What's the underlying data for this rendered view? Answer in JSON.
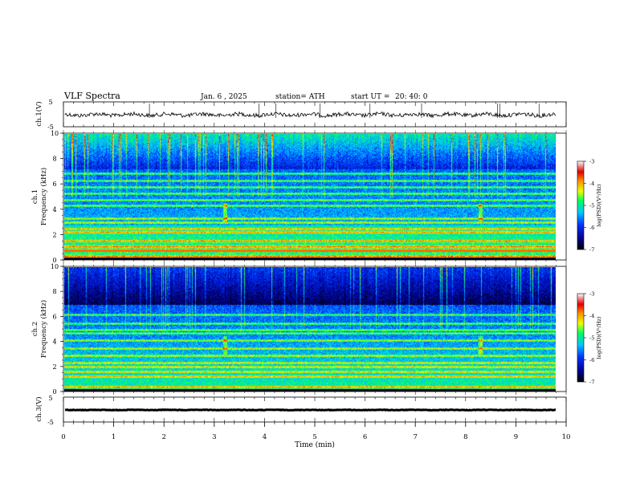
{
  "header": {
    "title": "VLF  Spectra",
    "date": "Jan.  6  , 2025",
    "station": "station= ATH",
    "start_label": "start  UT  =",
    "start_time": "20: 40: 0"
  },
  "chart_data": [
    {
      "type": "line",
      "name": "ch1-waveform",
      "ylabel": "ch.1(V)",
      "ylim": [
        -5,
        5
      ],
      "yticks": [
        "5",
        "-5"
      ],
      "xlim": [
        0,
        10
      ],
      "baseline_v": 0.1
    },
    {
      "type": "heatmap",
      "name": "ch1-spectrogram",
      "ylabel": "ch.1\nFrequency  (kHz)",
      "ylabel_line1": "ch.1",
      "ylabel_line2": "Frequency  (kHz)",
      "ylim": [
        0,
        10
      ],
      "yticks": [
        "0",
        "2",
        "4",
        "6",
        "8",
        "10"
      ],
      "xlim": [
        0,
        9.8
      ],
      "colorbar": {
        "label": "log(PSD)(V²/Hz)",
        "range": [
          -7,
          -3
        ],
        "ticks": [
          "-3",
          "-4",
          "-5",
          "-6",
          "-7"
        ]
      },
      "bands_khz": [
        0.3,
        0.8,
        1.1,
        1.5,
        2.2,
        2.5,
        3.0,
        3.3,
        4.3,
        4.8,
        5.3,
        5.8,
        6.3,
        6.9
      ],
      "events_min": [
        3.2,
        8.3
      ]
    },
    {
      "type": "heatmap",
      "name": "ch2-spectrogram",
      "ylabel_line1": "ch.2",
      "ylabel_line2": "Frequency  (kHz)",
      "ylim": [
        0,
        10
      ],
      "yticks": [
        "0",
        "2",
        "4",
        "6",
        "8",
        "10"
      ],
      "xlim": [
        0,
        9.8
      ],
      "colorbar": {
        "label": "log(PSD)(V²/Hz)",
        "range": [
          -7,
          -3
        ],
        "ticks": [
          "-3",
          "-4",
          "-5",
          "-6",
          "-7"
        ]
      },
      "bands_khz": [
        0.4,
        1.2,
        1.6,
        2.0,
        2.3,
        2.9,
        3.5,
        4.1,
        4.7,
        5.0,
        5.5,
        6.2
      ],
      "events_min": [
        3.2,
        8.3
      ]
    },
    {
      "type": "line",
      "name": "ch3-waveform",
      "ylabel": "ch.3(V)",
      "ylim": [
        -5,
        5
      ],
      "yticks": [
        "5",
        "-5"
      ],
      "xlim": [
        0,
        10
      ],
      "baseline_v": 0.1,
      "xlabel": "Time  (min)",
      "xticks": [
        "0",
        "1",
        "2",
        "3",
        "4",
        "5",
        "6",
        "7",
        "8",
        "9",
        "10"
      ]
    }
  ]
}
